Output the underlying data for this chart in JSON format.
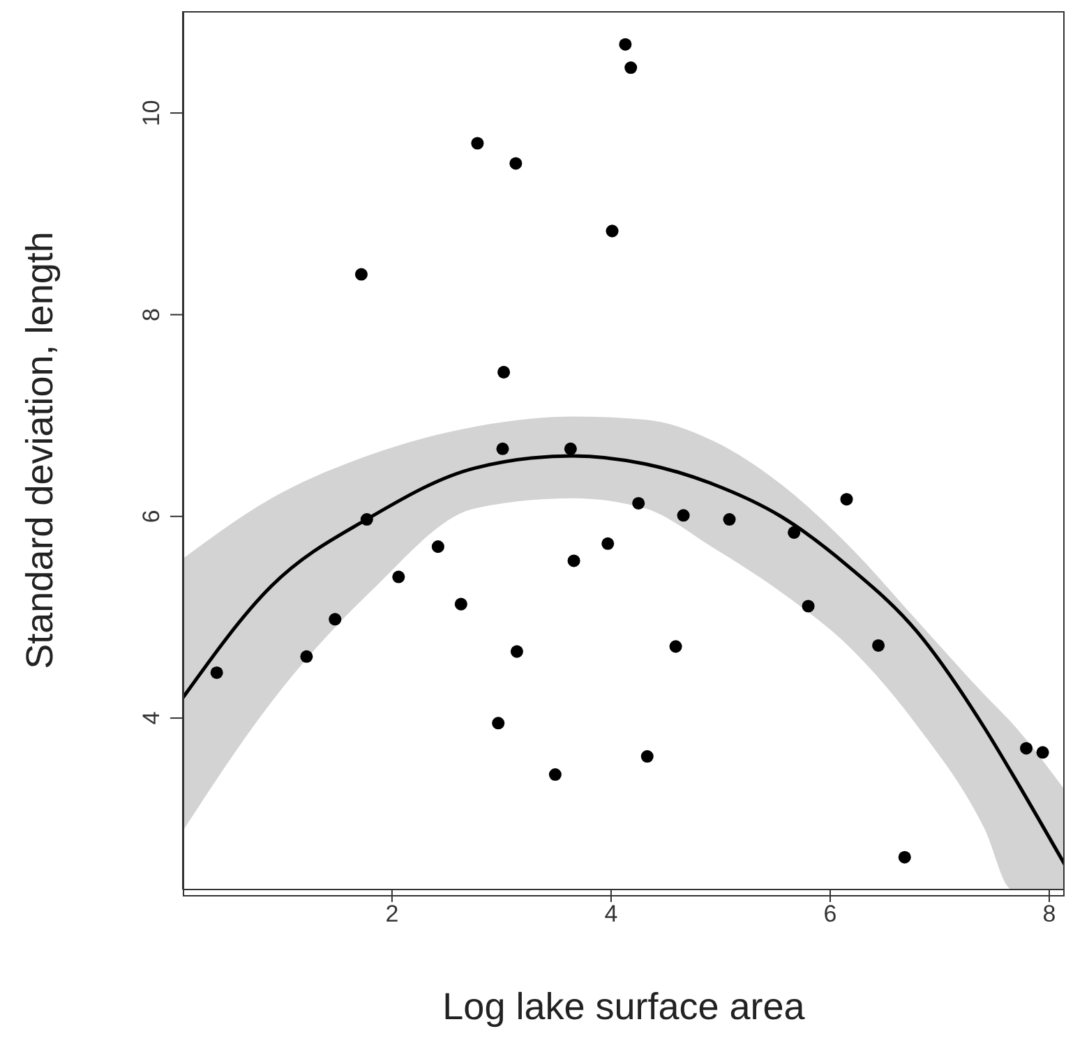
{
  "chart_data": {
    "type": "scatter",
    "xlabel": "Log lake surface area",
    "ylabel": "Standard deviation, length",
    "xlim": [
      0.09,
      8.14
    ],
    "ylim": [
      2.3,
      11.01
    ],
    "xticks": [
      2,
      4,
      6,
      8
    ],
    "yticks": [
      4,
      6,
      8,
      10
    ],
    "grid": false,
    "legend": false,
    "marker": "circle",
    "series": [
      {
        "type": "line",
        "color": "#000000",
        "line_style": "solid",
        "marker": "none",
        "x": [
          0.09,
          0.9,
          1.8,
          2.76,
          3.65,
          4.31,
          4.93,
          5.55,
          6.17,
          6.79,
          7.41,
          7.66,
          8.14
        ],
        "values": [
          4.2,
          5.31,
          5.99,
          6.48,
          6.6,
          6.52,
          6.32,
          6.0,
          5.5,
          4.86,
          3.9,
          3.45,
          2.55
        ],
        "lower": [
          2.88,
          4.16,
          5.25,
          6.08,
          6.18,
          6.08,
          5.69,
          5.25,
          4.71,
          3.93,
          2.9,
          2.3,
          2.3
        ],
        "upper": [
          5.58,
          6.18,
          6.61,
          6.89,
          6.99,
          6.96,
          6.75,
          6.32,
          5.71,
          4.97,
          4.23,
          3.95,
          3.29
        ]
      },
      {
        "color": "#000000",
        "x": [
          0.4,
          1.22,
          1.48,
          1.77,
          2.06,
          2.42,
          2.63,
          3.01,
          3.14,
          2.97,
          3.49,
          3.63,
          3.66,
          3.97,
          4.25,
          4.59,
          4.33,
          4.66,
          5.08,
          5.67,
          5.8,
          6.15,
          6.44,
          6.68,
          7.79,
          7.94,
          4.13,
          4.18,
          2.78,
          3.13,
          4.01,
          1.72,
          3.02
        ],
        "values": [
          4.45,
          4.61,
          4.98,
          5.97,
          5.4,
          5.7,
          5.13,
          6.67,
          4.66,
          3.95,
          3.44,
          6.67,
          5.56,
          5.73,
          6.13,
          4.71,
          3.62,
          6.01,
          5.97,
          5.84,
          5.11,
          6.17,
          4.72,
          2.62,
          3.7,
          3.66,
          10.68,
          10.45,
          9.7,
          9.5,
          8.83,
          8.4,
          7.43
        ]
      }
    ]
  }
}
